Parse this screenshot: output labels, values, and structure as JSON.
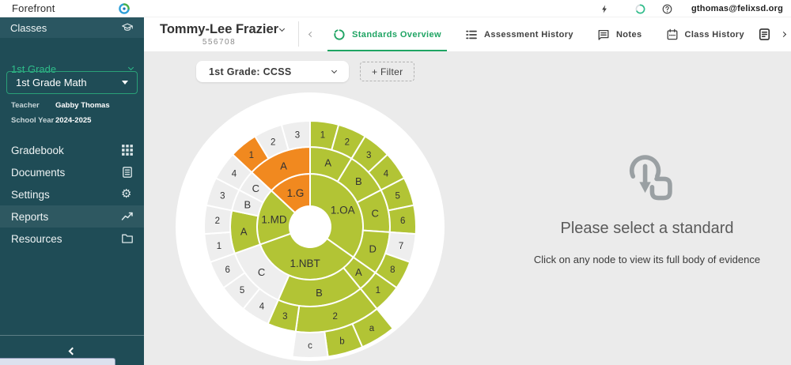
{
  "colors": {
    "sidebar_bg": "#1f4c56",
    "sidebar_accent_green": "#2ebd8a",
    "tab_active_green": "#1fa463",
    "content_bg": "#ebebeb",
    "chart_green": "#b2c435",
    "chart_orange": "#f1891f",
    "chart_gray": "#eeeeee"
  },
  "topbar": {
    "brand": "Forefront",
    "logo_icon": "forefront-logo",
    "icons": [
      "lightning-icon",
      "timer-icon",
      "help-icon"
    ],
    "user_email": "gthomas@felixsd.org"
  },
  "sidebar": {
    "classes": {
      "label": "Classes",
      "icon": "graduation-cap-icon"
    },
    "grade": {
      "label": "1st Grade"
    },
    "class_select": {
      "value": "1st Grade Math"
    },
    "info": [
      {
        "label": "Teacher",
        "value": "Gabby Thomas"
      },
      {
        "label": "School Year",
        "value": "2024-2025"
      }
    ],
    "menu": [
      {
        "label": "Gradebook",
        "icon": "grid-icon",
        "highlighted": false
      },
      {
        "label": "Documents",
        "icon": "doc-icon",
        "highlighted": false
      },
      {
        "label": "Settings",
        "icon": "gear-icon",
        "highlighted": false
      },
      {
        "label": "Reports",
        "icon": "trend-icon",
        "highlighted": true
      },
      {
        "label": "Resources",
        "icon": "folder-icon",
        "highlighted": false
      }
    ]
  },
  "header": {
    "student": {
      "name": "Tommy-Lee Frazier",
      "id": "556708"
    },
    "tabs": [
      {
        "label": "Standards Overview",
        "icon": "sunburst-icon",
        "active": true
      },
      {
        "label": "Assessment History",
        "icon": "list-icon",
        "active": false
      },
      {
        "label": "Notes",
        "icon": "chat-icon",
        "active": false
      },
      {
        "label": "Class History",
        "icon": "calendar-icon",
        "active": false
      }
    ],
    "overflow_icon": "page-icon"
  },
  "filters": {
    "framework": "1st Grade: CCSS",
    "add_filter": "+ Filter"
  },
  "empty_state": {
    "icon": "touch-select-icon",
    "title": "Please select a standard",
    "subtitle": "Click on any node to view its full body of evidence"
  },
  "chart_data": {
    "type": "sunburst",
    "description": "Standards sunburst, equal angle per leaf standard, starting at 12 o'clock going clockwise. Rings: domain > cluster > standard > sub-standard.",
    "total_leaves": 23,
    "palette": {
      "green": "#b2c435",
      "orange": "#f1891f",
      "gray": "#eeeeee"
    },
    "domains": [
      {
        "label": "1.OA",
        "color": "green",
        "clusters": [
          {
            "label": "A",
            "color": "green",
            "standards": [
              {
                "label": "1",
                "color": "green"
              },
              {
                "label": "2",
                "color": "green"
              }
            ]
          },
          {
            "label": "B",
            "color": "green",
            "standards": [
              {
                "label": "3",
                "color": "green"
              },
              {
                "label": "4",
                "color": "green"
              }
            ]
          },
          {
            "label": "C",
            "color": "green",
            "standards": [
              {
                "label": "5",
                "color": "green"
              },
              {
                "label": "6",
                "color": "green"
              }
            ]
          },
          {
            "label": "D",
            "color": "green",
            "standards": [
              {
                "label": "7",
                "color": "gray"
              },
              {
                "label": "8",
                "color": "green"
              }
            ]
          }
        ]
      },
      {
        "label": "1.NBT",
        "color": "green",
        "clusters": [
          {
            "label": "A",
            "color": "green",
            "standards": [
              {
                "label": "1",
                "color": "green"
              }
            ]
          },
          {
            "label": "B",
            "color": "green",
            "standards": [
              {
                "label": "2",
                "color": "green",
                "subs": [
                  {
                    "label": "a",
                    "color": "green"
                  },
                  {
                    "label": "b",
                    "color": "green"
                  },
                  {
                    "label": "c",
                    "color": "gray"
                  }
                ]
              },
              {
                "label": "3",
                "color": "green"
              }
            ]
          },
          {
            "label": "C",
            "color": "gray",
            "standards": [
              {
                "label": "4",
                "color": "gray"
              },
              {
                "label": "5",
                "color": "gray"
              },
              {
                "label": "6",
                "color": "gray"
              }
            ]
          }
        ]
      },
      {
        "label": "1.MD",
        "color": "green",
        "clusters": [
          {
            "label": "A",
            "color": "green",
            "standards": [
              {
                "label": "1",
                "color": "gray"
              },
              {
                "label": "2",
                "color": "gray"
              }
            ]
          },
          {
            "label": "B",
            "color": "gray",
            "standards": [
              {
                "label": "3",
                "color": "gray"
              }
            ]
          },
          {
            "label": "C",
            "color": "gray",
            "standards": [
              {
                "label": "4",
                "color": "gray"
              }
            ]
          }
        ]
      },
      {
        "label": "1.G",
        "color": "orange",
        "clusters": [
          {
            "label": "A",
            "color": "orange",
            "standards": [
              {
                "label": "1",
                "color": "orange"
              },
              {
                "label": "2",
                "color": "gray"
              },
              {
                "label": "3",
                "color": "gray"
              }
            ]
          }
        ]
      }
    ]
  }
}
